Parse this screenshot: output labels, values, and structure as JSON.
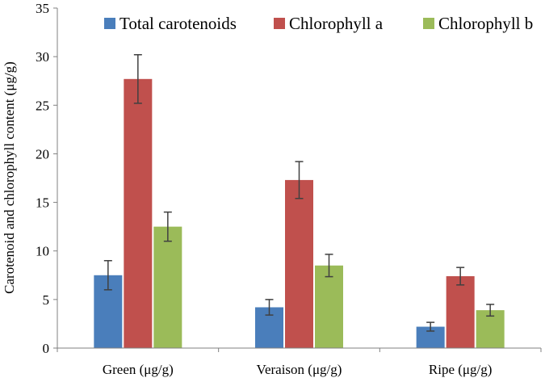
{
  "chart_data": {
    "type": "bar",
    "title": "",
    "xlabel": "",
    "ylabel": "Carotenoid and chlorophyll content (μg/g)",
    "ylim": [
      0,
      35
    ],
    "yticks": [
      0,
      5,
      10,
      15,
      20,
      25,
      30,
      35
    ],
    "grid": false,
    "legend_position": "top",
    "categories": [
      "Green (μg/g)",
      "Veraison (μg/g)",
      "Ripe (μg/g)"
    ],
    "series": [
      {
        "name": "Total carotenoids",
        "color": "#4a7ebb",
        "values": [
          7.5,
          4.2,
          2.2
        ],
        "errors": [
          1.5,
          0.8,
          0.45
        ]
      },
      {
        "name": "Chlorophyll a",
        "color": "#c0504d",
        "values": [
          27.7,
          17.3,
          7.4
        ],
        "errors": [
          2.5,
          1.9,
          0.9
        ]
      },
      {
        "name": "Chlorophyll b",
        "color": "#9bbb59",
        "values": [
          12.5,
          8.5,
          3.9
        ],
        "errors": [
          1.5,
          1.15,
          0.6
        ]
      }
    ]
  }
}
